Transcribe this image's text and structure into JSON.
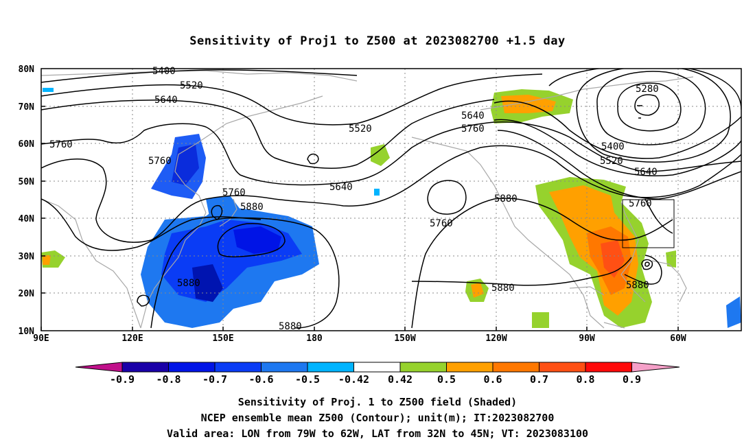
{
  "title": "Sensitivity of Proj1 to Z500 at 2023082700 +1.5 day",
  "map": {
    "lon_range": [
      90,
      310
    ],
    "lat_range": [
      10,
      80
    ],
    "x_tick_labels": [
      "90E",
      "120E",
      "150E",
      "180",
      "150W",
      "120W",
      "90W",
      "60W"
    ],
    "y_tick_labels": [
      "10N",
      "20N",
      "30N",
      "40N",
      "50N",
      "60N",
      "70N",
      "80N"
    ],
    "contour_labels": [
      "5400",
      "5520",
      "5640",
      "5760",
      "5520",
      "5760",
      "5640",
      "5760",
      "5880",
      "5640",
      "5760",
      "5880",
      "5760",
      "5880",
      "5880",
      "5880",
      "5280",
      "5400",
      "5520",
      "5640",
      "5760",
      "5880"
    ],
    "valid_area_box": {
      "lon": [
        -79,
        -62
      ],
      "lat": [
        32,
        45
      ]
    }
  },
  "colorbar": {
    "labels": [
      "-0.9",
      "-0.8",
      "-0.7",
      "-0.6",
      "-0.5",
      "-0.42",
      "0.42",
      "0.5",
      "0.6",
      "0.7",
      "0.8",
      "0.9"
    ],
    "colors": [
      "#1a00a8",
      "#0014e6",
      "#0a3cf5",
      "#1e78f0",
      "#00b4ff",
      "#ffffff",
      "#96d22d",
      "#ffa000",
      "#ff7800",
      "#ff5014",
      "#ff0a0a"
    ],
    "end_low_color": "#c0108a",
    "end_high_color": "#f5a0c8"
  },
  "caption": {
    "line1": "Sensitivity of Proj. 1 to Z500 field (Shaded)",
    "line2": "NCEP ensemble mean Z500 (Contour); unit(m); IT:2023082700",
    "line3": "Valid area: LON from 79W to 62W, LAT from 32N to 45N; VT: 2023083100"
  }
}
